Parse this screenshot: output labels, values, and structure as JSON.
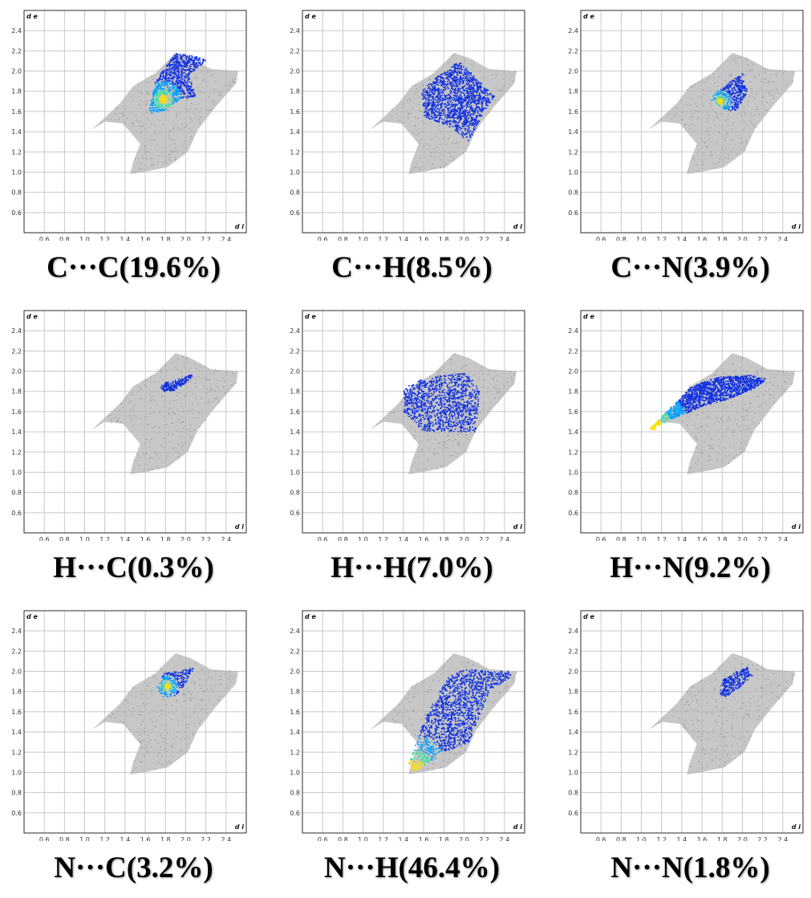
{
  "chart_data": [
    {
      "type": "scatter",
      "caption": "C···C(19.6%)",
      "xlabel": "d i",
      "ylabel": "d e",
      "xlim": [
        0.4,
        2.6
      ],
      "ylim": [
        0.4,
        2.6
      ],
      "xticks": [
        "0.6",
        "0.8",
        "1.0",
        "1.2",
        "1.4",
        "1.6",
        "1.8",
        "2.0",
        "2.2",
        "2.4"
      ],
      "yticks": [
        "0.6",
        "0.8",
        "1.0",
        "1.2",
        "1.4",
        "1.6",
        "1.8",
        "2.0",
        "2.2",
        "2.4"
      ],
      "grid": true,
      "highlight": {
        "outline": [
          [
            1.63,
            1.58
          ],
          [
            1.7,
            1.9
          ],
          [
            1.9,
            2.18
          ],
          [
            2.22,
            2.12
          ],
          [
            2.03,
            1.96
          ],
          [
            2.1,
            1.75
          ],
          [
            1.95,
            1.72
          ],
          [
            1.78,
            1.6
          ]
        ],
        "hotspot": [
          1.78,
          1.72
        ]
      }
    },
    {
      "type": "scatter",
      "caption": "C···H(8.5%)",
      "xlabel": "d i",
      "ylabel": "d e",
      "xlim": [
        0.4,
        2.6
      ],
      "ylim": [
        0.4,
        2.6
      ],
      "xticks": [
        "0.6",
        "0.8",
        "1.0",
        "1.2",
        "1.4",
        "1.6",
        "1.8",
        "2.0",
        "2.2",
        "2.4"
      ],
      "yticks": [
        "0.6",
        "0.8",
        "1.0",
        "1.2",
        "1.4",
        "1.6",
        "1.8",
        "2.0",
        "2.2",
        "2.4"
      ],
      "grid": true,
      "highlight": {
        "outline": [
          [
            1.58,
            1.8
          ],
          [
            1.7,
            1.92
          ],
          [
            1.95,
            2.1
          ],
          [
            2.15,
            1.9
          ],
          [
            2.3,
            1.75
          ],
          [
            2.2,
            1.6
          ],
          [
            2.05,
            1.3
          ],
          [
            1.85,
            1.45
          ],
          [
            1.6,
            1.55
          ]
        ]
      }
    },
    {
      "type": "scatter",
      "caption": "C···N(3.9%)",
      "xlabel": "d i",
      "ylabel": "d e",
      "xlim": [
        0.4,
        2.6
      ],
      "ylim": [
        0.4,
        2.6
      ],
      "xticks": [
        "0.6",
        "0.8",
        "1.0",
        "1.2",
        "1.4",
        "1.6",
        "1.8",
        "2.0",
        "2.2",
        "2.4"
      ],
      "yticks": [
        "0.6",
        "0.8",
        "1.0",
        "1.2",
        "1.4",
        "1.6",
        "1.8",
        "2.0",
        "2.2",
        "2.4"
      ],
      "grid": true,
      "highlight": {
        "outline": [
          [
            1.68,
            1.72
          ],
          [
            1.75,
            1.8
          ],
          [
            2.0,
            1.98
          ],
          [
            2.05,
            1.8
          ],
          [
            1.95,
            1.62
          ],
          [
            1.85,
            1.6
          ]
        ],
        "hotspot": [
          1.78,
          1.7
        ]
      }
    },
    {
      "type": "scatter",
      "caption": "H···C(0.3%)",
      "xlabel": "d i",
      "ylabel": "d e",
      "xlim": [
        0.4,
        2.6
      ],
      "ylim": [
        0.4,
        2.6
      ],
      "xticks": [
        "0.6",
        "0.8",
        "1.0",
        "1.2",
        "1.4",
        "1.6",
        "1.8",
        "2.0",
        "2.2",
        "2.4"
      ],
      "yticks": [
        "0.6",
        "0.8",
        "1.0",
        "1.2",
        "1.4",
        "1.6",
        "1.8",
        "2.0",
        "2.2",
        "2.4"
      ],
      "grid": true,
      "highlight": {
        "outline": [
          [
            1.75,
            1.84
          ],
          [
            1.78,
            1.88
          ],
          [
            2.08,
            1.97
          ],
          [
            2.02,
            1.9
          ],
          [
            1.88,
            1.8
          ],
          [
            1.78,
            1.8
          ]
        ]
      }
    },
    {
      "type": "scatter",
      "caption": "H···H(7.0%)",
      "xlabel": "d i",
      "ylabel": "d e",
      "xlim": [
        0.4,
        2.6
      ],
      "ylim": [
        0.4,
        2.6
      ],
      "xticks": [
        "0.6",
        "0.8",
        "1.0",
        "1.2",
        "1.4",
        "1.6",
        "1.8",
        "2.0",
        "2.2",
        "2.4"
      ],
      "yticks": [
        "0.6",
        "0.8",
        "1.0",
        "1.2",
        "1.4",
        "1.6",
        "1.8",
        "2.0",
        "2.2",
        "2.4"
      ],
      "grid": true,
      "highlight": {
        "outline": [
          [
            1.4,
            1.82
          ],
          [
            1.52,
            1.9
          ],
          [
            1.8,
            1.96
          ],
          [
            2.0,
            1.98
          ],
          [
            2.1,
            1.9
          ],
          [
            2.15,
            1.8
          ],
          [
            2.12,
            1.4
          ],
          [
            1.6,
            1.4
          ],
          [
            1.4,
            1.6
          ]
        ]
      }
    },
    {
      "type": "scatter",
      "caption": "H···N(9.2%)",
      "xlabel": "d i",
      "ylabel": "d e",
      "xlim": [
        0.4,
        2.6
      ],
      "ylim": [
        0.4,
        2.6
      ],
      "xticks": [
        "0.6",
        "0.8",
        "1.0",
        "1.2",
        "1.4",
        "1.6",
        "1.8",
        "2.0",
        "2.2",
        "2.4"
      ],
      "yticks": [
        "0.6",
        "0.8",
        "1.0",
        "1.2",
        "1.4",
        "1.6",
        "1.8",
        "2.0",
        "2.2",
        "2.4"
      ],
      "grid": true,
      "highlight": {
        "outline": [
          [
            1.07,
            1.42
          ],
          [
            1.35,
            1.7
          ],
          [
            1.5,
            1.85
          ],
          [
            1.75,
            1.94
          ],
          [
            2.1,
            1.96
          ],
          [
            2.25,
            1.92
          ],
          [
            2.1,
            1.82
          ],
          [
            1.85,
            1.72
          ],
          [
            1.6,
            1.65
          ],
          [
            1.25,
            1.5
          ]
        ],
        "hotspot": [
          1.12,
          1.44
        ]
      }
    },
    {
      "type": "scatter",
      "caption": "N···C(3.2%)",
      "xlabel": "d i",
      "ylabel": "d e",
      "xlim": [
        0.4,
        2.6
      ],
      "ylim": [
        0.4,
        2.6
      ],
      "xticks": [
        "0.6",
        "0.8",
        "1.0",
        "1.2",
        "1.4",
        "1.6",
        "1.8",
        "2.0",
        "2.2",
        "2.4"
      ],
      "yticks": [
        "0.6",
        "0.8",
        "1.0",
        "1.2",
        "1.4",
        "1.6",
        "1.8",
        "2.0",
        "2.2",
        "2.4"
      ],
      "grid": true,
      "highlight": {
        "outline": [
          [
            1.72,
            1.82
          ],
          [
            1.78,
            1.98
          ],
          [
            1.9,
            2.0
          ],
          [
            2.08,
            2.03
          ],
          [
            1.98,
            1.85
          ],
          [
            1.9,
            1.76
          ],
          [
            1.78,
            1.74
          ]
        ],
        "hotspot": [
          1.82,
          1.85
        ]
      }
    },
    {
      "type": "scatter",
      "caption": "N···H(46.4%)",
      "xlabel": "d i",
      "ylabel": "d e",
      "xlim": [
        0.4,
        2.6
      ],
      "ylim": [
        0.4,
        2.6
      ],
      "xticks": [
        "0.6",
        "0.8",
        "1.0",
        "1.2",
        "1.4",
        "1.6",
        "1.8",
        "2.0",
        "2.2",
        "2.4"
      ],
      "yticks": [
        "0.6",
        "0.8",
        "1.0",
        "1.2",
        "1.4",
        "1.6",
        "1.8",
        "2.0",
        "2.2",
        "2.4"
      ],
      "grid": true,
      "highlight": {
        "outline": [
          [
            1.44,
            1.06
          ],
          [
            1.52,
            1.0
          ],
          [
            1.65,
            1.1
          ],
          [
            1.85,
            1.22
          ],
          [
            2.05,
            1.3
          ],
          [
            2.15,
            1.55
          ],
          [
            2.25,
            1.8
          ],
          [
            2.48,
            1.96
          ],
          [
            2.45,
            2.0
          ],
          [
            2.0,
            2.02
          ],
          [
            1.85,
            1.95
          ],
          [
            1.7,
            1.7
          ],
          [
            1.58,
            1.45
          ]
        ],
        "hotspot": [
          1.52,
          1.05
        ]
      }
    },
    {
      "type": "scatter",
      "caption": "N···N(1.8%)",
      "xlabel": "d i",
      "ylabel": "d e",
      "xlim": [
        0.4,
        2.6
      ],
      "ylim": [
        0.4,
        2.6
      ],
      "xticks": [
        "0.6",
        "0.8",
        "1.0",
        "1.2",
        "1.4",
        "1.6",
        "1.8",
        "2.0",
        "2.2",
        "2.4"
      ],
      "yticks": [
        "0.6",
        "0.8",
        "1.0",
        "1.2",
        "1.4",
        "1.6",
        "1.8",
        "2.0",
        "2.2",
        "2.4"
      ],
      "grid": true,
      "highlight": {
        "outline": [
          [
            1.78,
            1.78
          ],
          [
            1.8,
            1.92
          ],
          [
            2.05,
            2.05
          ],
          [
            2.1,
            1.96
          ],
          [
            1.95,
            1.82
          ],
          [
            1.82,
            1.74
          ]
        ]
      }
    }
  ],
  "fingerprint_background": {
    "color": "#b4b4b4",
    "outline": [
      [
        1.07,
        1.42
      ],
      [
        1.35,
        1.68
      ],
      [
        1.48,
        1.85
      ],
      [
        1.7,
        1.98
      ],
      [
        1.9,
        2.18
      ],
      [
        2.05,
        2.13
      ],
      [
        2.25,
        2.02
      ],
      [
        2.52,
        2.0
      ],
      [
        2.5,
        1.88
      ],
      [
        2.3,
        1.65
      ],
      [
        2.12,
        1.42
      ],
      [
        2.02,
        1.2
      ],
      [
        1.82,
        1.05
      ],
      [
        1.58,
        1.0
      ],
      [
        1.45,
        0.98
      ],
      [
        1.48,
        1.1
      ],
      [
        1.55,
        1.28
      ],
      [
        1.38,
        1.48
      ],
      [
        1.2,
        1.5
      ]
    ]
  },
  "colors": {
    "grid": "#c8c8c8",
    "frame": "#2a2a2a",
    "hot": "#ffe000",
    "warm": "#40e0a0",
    "cool": "#00a0ff",
    "base": "#1030e0"
  }
}
